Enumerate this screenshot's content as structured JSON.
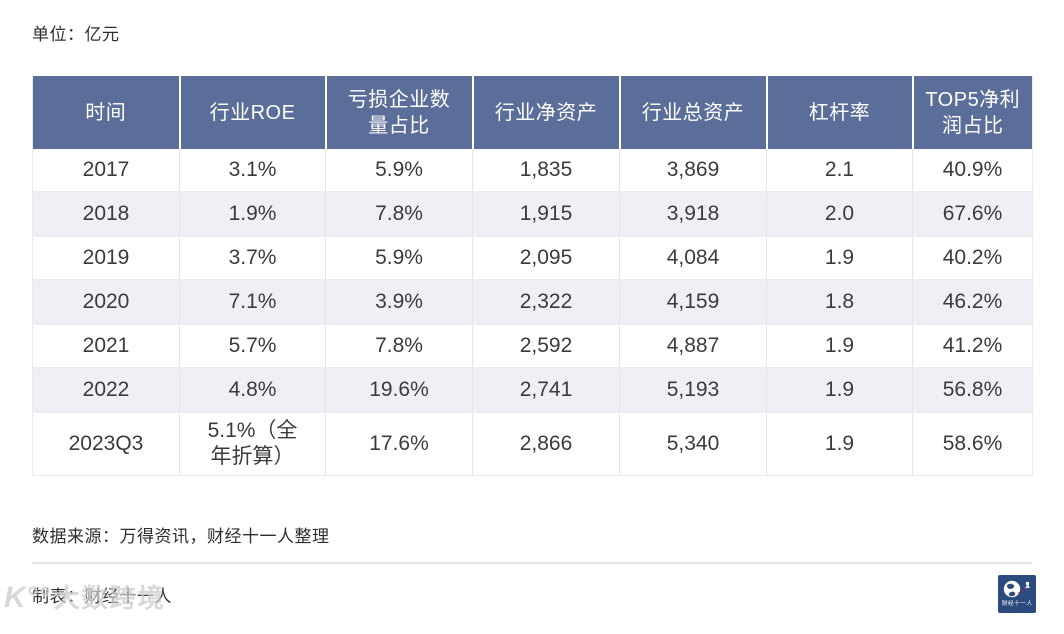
{
  "page": {
    "unit_label": "单位：亿元",
    "table": {
      "headers": [
        {
          "label": "时间"
        },
        {
          "label": "行业ROE"
        },
        {
          "label": "亏损企业数\n量占比"
        },
        {
          "label": "行业净资产"
        },
        {
          "label": "行业总资产"
        },
        {
          "label": "杠杆率"
        },
        {
          "label": "TOP5净利\n润占比"
        }
      ]
    },
    "footer": {
      "source": "数据来源：万得资讯，财经十一人整理",
      "credit": "制表：财经十一人"
    },
    "watermark": {
      "icon_text": "K°°",
      "text": "大数跨境"
    },
    "logo": {
      "text": "财经十一人"
    },
    "colors": {
      "header_bg": "#5b6e99",
      "stripe_bg": "#eef0f5",
      "row_bg": "#ffffff",
      "logo_bg": "#2b4a7e",
      "text": "#3b3b3b",
      "accent_red": "#c0392b"
    }
  },
  "chart_data": {
    "type": "table",
    "title": "单位：亿元",
    "columns": [
      "时间",
      "行业ROE",
      "亏损企业数量占比",
      "行业净资产",
      "行业总资产",
      "杠杆率",
      "TOP5净利润占比"
    ],
    "rows": [
      [
        "2017",
        "3.1%",
        "5.9%",
        "1,835",
        "3,869",
        "2.1",
        "40.9%"
      ],
      [
        "2018",
        "1.9%",
        "7.8%",
        "1,915",
        "3,918",
        "2.0",
        "67.6%"
      ],
      [
        "2019",
        "3.7%",
        "5.9%",
        "2,095",
        "4,084",
        "1.9",
        "40.2%"
      ],
      [
        "2020",
        "7.1%",
        "3.9%",
        "2,322",
        "4,159",
        "1.8",
        "46.2%"
      ],
      [
        "2021",
        "5.7%",
        "7.8%",
        "2,592",
        "4,887",
        "1.9",
        "41.2%"
      ],
      [
        "2022",
        "4.8%",
        "19.6%",
        "2,741",
        "5,193",
        "1.9",
        "56.8%"
      ],
      [
        "2023Q3",
        "5.1%（全\n年折算）",
        "17.6%",
        "2,866",
        "5,340",
        "1.9",
        "58.6%"
      ]
    ],
    "source": "数据来源：万得资讯，财经十一人整理",
    "credit": "制表：财经十一人"
  }
}
